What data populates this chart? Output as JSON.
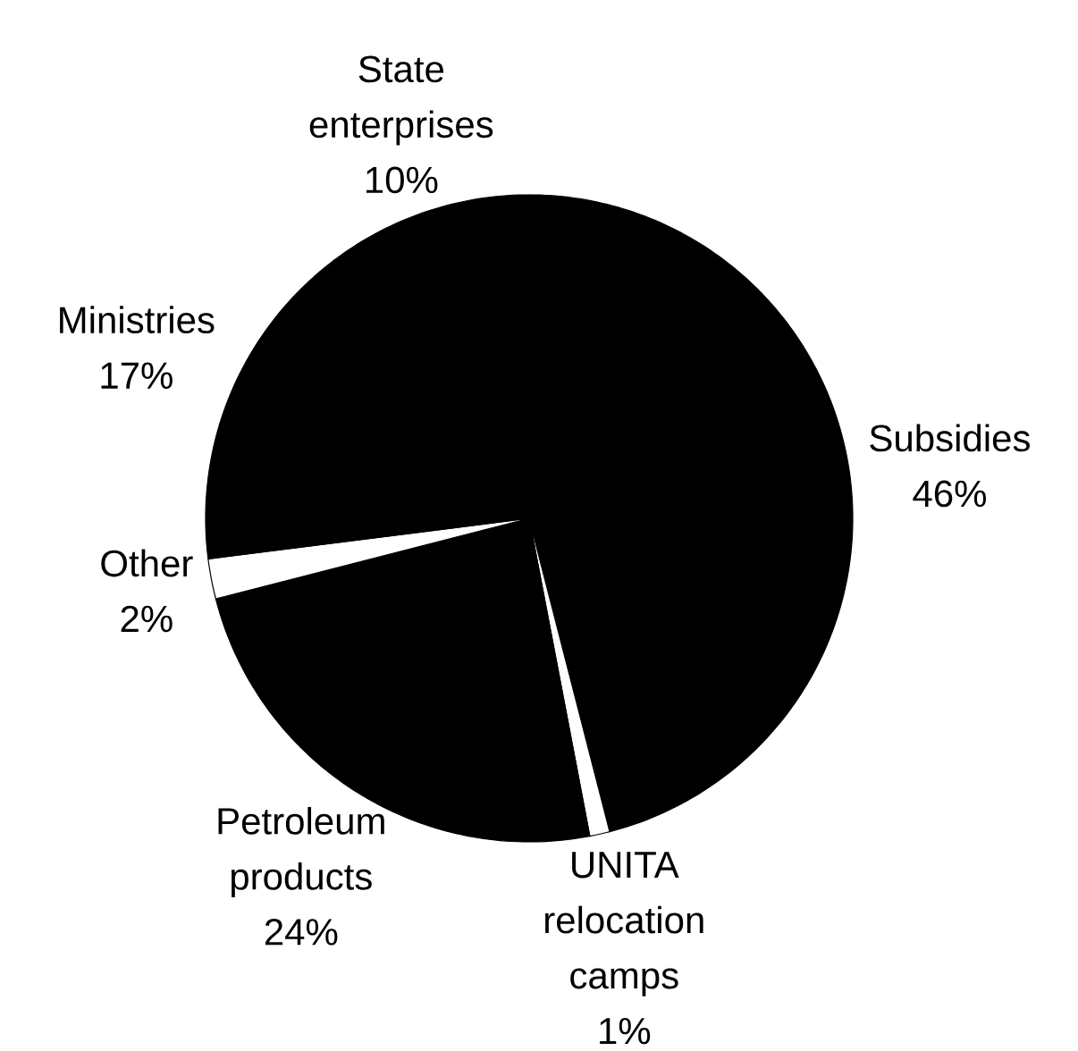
{
  "chart_data": {
    "type": "pie",
    "categories": [
      "Subsidies",
      "UNITA relocation camps",
      "Petroleum products",
      "Other",
      "Ministries",
      "State enterprises"
    ],
    "values": [
      46,
      1,
      24,
      2,
      17,
      10
    ],
    "value_labels": [
      "46%",
      "1%",
      "24%",
      "2%",
      "17%",
      "10%"
    ],
    "colors": [
      "#000000",
      "#ffffff",
      "#000000",
      "#ffffff",
      "#000000",
      "#000000"
    ]
  }
}
